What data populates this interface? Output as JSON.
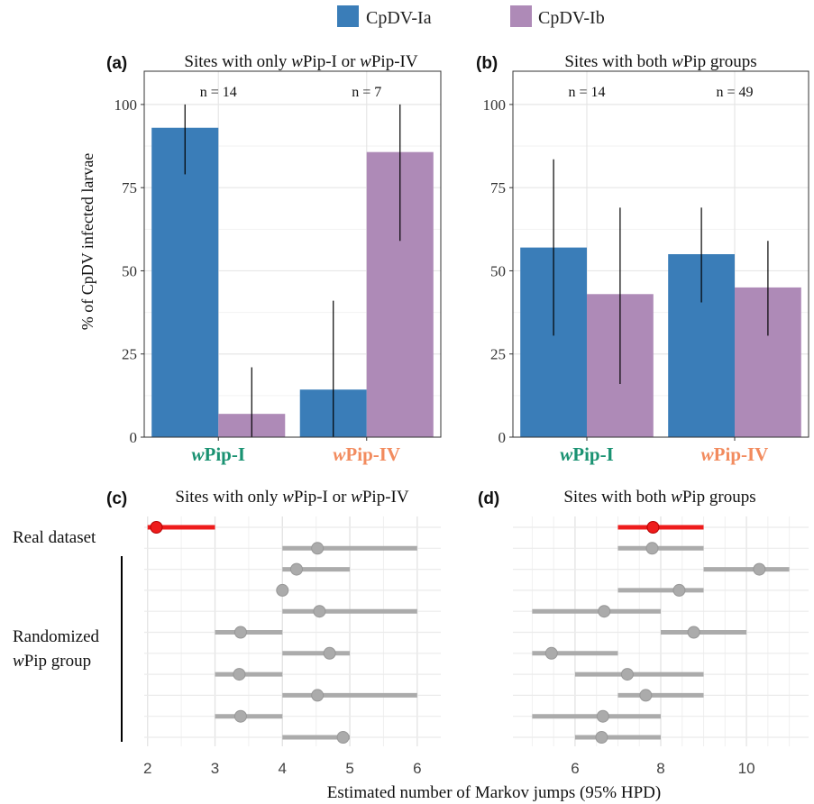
{
  "legend": {
    "items": [
      {
        "label": "CpDV-Ia",
        "color": "#3A7DB8"
      },
      {
        "label": "CpDV-Ib",
        "color": "#AE8AB7"
      }
    ]
  },
  "group_colors": {
    "wPip-I": "#1A9272",
    "wPip-IV": "#F28B5E"
  },
  "chart_data": [
    {
      "type": "bar",
      "panel_label": "(a)",
      "title_pre": "Sites with only ",
      "title_w1": "w",
      "title_mid": "Pip-I or ",
      "title_w2": "w",
      "title_post": "Pip-IV",
      "ylabel": "% of CpDV infected larvae",
      "ylim": [
        0,
        110
      ],
      "yticks": [
        "0",
        "25",
        "50",
        "75",
        "100"
      ],
      "categories": [
        {
          "italic": "w",
          "rest": "Pip-I",
          "n_label": "n = 14"
        },
        {
          "italic": "w",
          "rest": "Pip-IV",
          "n_label": "n = 7"
        }
      ],
      "series": [
        {
          "name": "CpDV-Ia",
          "values": [
            93,
            14.3
          ],
          "ci_low": [
            79,
            0
          ],
          "ci_high": [
            100,
            41
          ]
        },
        {
          "name": "CpDV-Ib",
          "values": [
            7,
            85.7
          ],
          "ci_low": [
            0,
            59
          ],
          "ci_high": [
            21,
            100
          ]
        }
      ]
    },
    {
      "type": "bar",
      "panel_label": "(b)",
      "title_pre": "Sites with both ",
      "title_w1": "w",
      "title_mid": "Pip groups",
      "ylim": [
        0,
        110
      ],
      "yticks": [
        "0",
        "25",
        "50",
        "75",
        "100"
      ],
      "categories": [
        {
          "italic": "w",
          "rest": "Pip-I",
          "n_label": "n = 14"
        },
        {
          "italic": "w",
          "rest": "Pip-IV",
          "n_label": "n = 49"
        }
      ],
      "series": [
        {
          "name": "CpDV-Ia",
          "values": [
            57,
            55
          ],
          "ci_low": [
            30.5,
            40.5
          ],
          "ci_high": [
            83.5,
            69
          ]
        },
        {
          "name": "CpDV-Ib",
          "values": [
            43,
            45
          ],
          "ci_low": [
            16,
            30.5
          ],
          "ci_high": [
            69,
            59
          ]
        }
      ]
    },
    {
      "type": "scatter",
      "panel_label": "(c)",
      "title_pre": "Sites with only ",
      "title_w1": "w",
      "title_mid": "Pip-I or ",
      "title_w2": "w",
      "title_post": "Pip-IV",
      "xlim": [
        1.95,
        6.35
      ],
      "xticks": [
        2,
        3,
        4,
        5,
        6
      ],
      "rows": [
        {
          "estimate": 2.13,
          "low": 2,
          "high": 3,
          "real": true
        },
        {
          "estimate": 4.52,
          "low": 4,
          "high": 6
        },
        {
          "estimate": 4.21,
          "low": 4,
          "high": 5
        },
        {
          "estimate": 4.0,
          "low": 4,
          "high": 4
        },
        {
          "estimate": 4.55,
          "low": 4,
          "high": 6
        },
        {
          "estimate": 3.38,
          "low": 3,
          "high": 4
        },
        {
          "estimate": 4.7,
          "low": 4,
          "high": 5
        },
        {
          "estimate": 3.36,
          "low": 3,
          "high": 4
        },
        {
          "estimate": 4.52,
          "low": 4,
          "high": 6
        },
        {
          "estimate": 3.38,
          "low": 3,
          "high": 4
        },
        {
          "estimate": 4.9,
          "low": 4,
          "high": 5
        }
      ]
    },
    {
      "type": "scatter",
      "panel_label": "(d)",
      "title_pre": "Sites with both ",
      "title_w1": "w",
      "title_mid": "Pip groups",
      "xlim": [
        4.55,
        11.45
      ],
      "xticks": [
        6,
        8,
        10
      ],
      "rows": [
        {
          "estimate": 7.82,
          "low": 7,
          "high": 9,
          "real": true
        },
        {
          "estimate": 7.8,
          "low": 7,
          "high": 9
        },
        {
          "estimate": 10.3,
          "low": 9,
          "high": 11
        },
        {
          "estimate": 8.43,
          "low": 7,
          "high": 9
        },
        {
          "estimate": 6.68,
          "low": 5,
          "high": 8
        },
        {
          "estimate": 8.77,
          "low": 8,
          "high": 10
        },
        {
          "estimate": 5.45,
          "low": 5,
          "high": 7
        },
        {
          "estimate": 7.22,
          "low": 6,
          "high": 9
        },
        {
          "estimate": 7.65,
          "low": 7,
          "high": 9
        },
        {
          "estimate": 6.65,
          "low": 5,
          "high": 8
        },
        {
          "estimate": 6.62,
          "low": 6,
          "high": 8
        }
      ]
    }
  ],
  "labels": {
    "real_dataset": "Real dataset",
    "randomized_line1": "Randomized",
    "randomized_w": "w",
    "randomized_line2_rest": "Pip group",
    "xlabel_bottom": "Estimated number of  Markov jumps (95% HPD)"
  }
}
